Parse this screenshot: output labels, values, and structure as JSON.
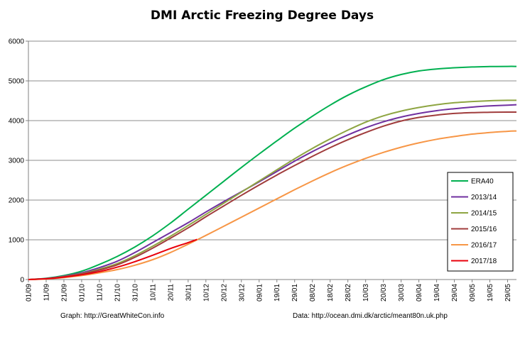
{
  "chart_data": {
    "type": "line",
    "title": "DMI Arctic Freezing Degree Days",
    "xlabel": "",
    "ylabel": "",
    "x_tick_labels": [
      "01/09",
      "11/09",
      "21/09",
      "01/10",
      "11/10",
      "21/10",
      "31/10",
      "10/11",
      "20/11",
      "30/11",
      "10/12",
      "20/12",
      "30/12",
      "09/01",
      "19/01",
      "29/01",
      "08/02",
      "18/02",
      "28/02",
      "10/03",
      "20/03",
      "30/03",
      "09/04",
      "19/04",
      "29/04",
      "09/05",
      "19/05",
      "29/05"
    ],
    "y_tick_labels": [
      "0",
      "1000",
      "2000",
      "3000",
      "4000",
      "5000",
      "6000"
    ],
    "ylim": [
      0,
      6000
    ],
    "grid": "horizontal",
    "legend_position": "right",
    "x_unit_note": "x values are tick indices (0 = 01/09, each step = 10 days)",
    "series": [
      {
        "name": "ERA40",
        "color": "#00b050",
        "x": [
          0,
          1,
          2,
          3,
          4,
          5,
          6,
          7,
          8,
          9,
          10,
          11,
          12,
          13,
          14,
          15,
          16,
          17,
          18,
          19,
          20,
          21,
          22,
          23,
          24,
          25,
          26,
          27,
          27.5
        ],
        "y": [
          0,
          30,
          100,
          210,
          380,
          580,
          820,
          1100,
          1420,
          1770,
          2120,
          2470,
          2820,
          3160,
          3490,
          3810,
          4110,
          4390,
          4640,
          4850,
          5030,
          5160,
          5250,
          5300,
          5330,
          5350,
          5360,
          5365,
          5365
        ]
      },
      {
        "name": "2013/14",
        "color": "#7030a0",
        "x": [
          0,
          1,
          2,
          3,
          4,
          5,
          6,
          7,
          8,
          9,
          10,
          11,
          12,
          13,
          14,
          15,
          16,
          17,
          18,
          19,
          20,
          21,
          22,
          23,
          24,
          25,
          26,
          27,
          27.5
        ],
        "y": [
          0,
          25,
          85,
          170,
          300,
          460,
          680,
          930,
          1180,
          1430,
          1700,
          1960,
          2210,
          2460,
          2720,
          2980,
          3220,
          3440,
          3640,
          3820,
          3970,
          4090,
          4180,
          4250,
          4300,
          4340,
          4370,
          4390,
          4400
        ]
      },
      {
        "name": "2014/15",
        "color": "#8ea542",
        "x": [
          0,
          1,
          2,
          3,
          4,
          5,
          6,
          7,
          8,
          9,
          10,
          11,
          12,
          13,
          14,
          15,
          16,
          17,
          18,
          19,
          20,
          21,
          22,
          23,
          24,
          25,
          26,
          27,
          27.5
        ],
        "y": [
          0,
          20,
          75,
          150,
          260,
          400,
          600,
          840,
          1090,
          1360,
          1640,
          1920,
          2200,
          2480,
          2760,
          3040,
          3300,
          3540,
          3760,
          3960,
          4120,
          4240,
          4330,
          4400,
          4450,
          4480,
          4500,
          4510,
          4510
        ]
      },
      {
        "name": "2015/16",
        "color": "#a03c3c",
        "x": [
          0,
          1,
          2,
          3,
          4,
          5,
          6,
          7,
          8,
          9,
          10,
          11,
          12,
          13,
          14,
          15,
          16,
          17,
          18,
          19,
          20,
          21,
          22,
          23,
          24,
          25,
          26,
          27,
          27.5
        ],
        "y": [
          0,
          20,
          70,
          140,
          240,
          370,
          560,
          790,
          1040,
          1300,
          1580,
          1850,
          2120,
          2380,
          2630,
          2870,
          3100,
          3320,
          3520,
          3700,
          3860,
          3990,
          4080,
          4140,
          4180,
          4200,
          4210,
          4215,
          4215
        ]
      },
      {
        "name": "2016/17",
        "color": "#f79646",
        "x": [
          0,
          1,
          2,
          3,
          4,
          5,
          6,
          7,
          8,
          9,
          10,
          11,
          12,
          13,
          14,
          15,
          16,
          17,
          18,
          19,
          20,
          21,
          22,
          23,
          24,
          25,
          26,
          27,
          27.5
        ],
        "y": [
          0,
          15,
          50,
          100,
          170,
          250,
          360,
          500,
          680,
          890,
          1110,
          1340,
          1570,
          1800,
          2030,
          2260,
          2480,
          2690,
          2880,
          3050,
          3200,
          3330,
          3440,
          3530,
          3600,
          3660,
          3700,
          3730,
          3740
        ]
      },
      {
        "name": "2017/18",
        "color": "#e8000b",
        "x": [
          0,
          1,
          2,
          3,
          4,
          5,
          6,
          7,
          8,
          9,
          9.5
        ],
        "y": [
          0,
          20,
          60,
          120,
          200,
          310,
          450,
          610,
          780,
          930,
          1010
        ]
      }
    ]
  },
  "footer": {
    "left": "Graph: http://GreatWhiteCon.info",
    "right": "Data: http://ocean.dmi.dk/arctic/meant80n.uk.php"
  }
}
